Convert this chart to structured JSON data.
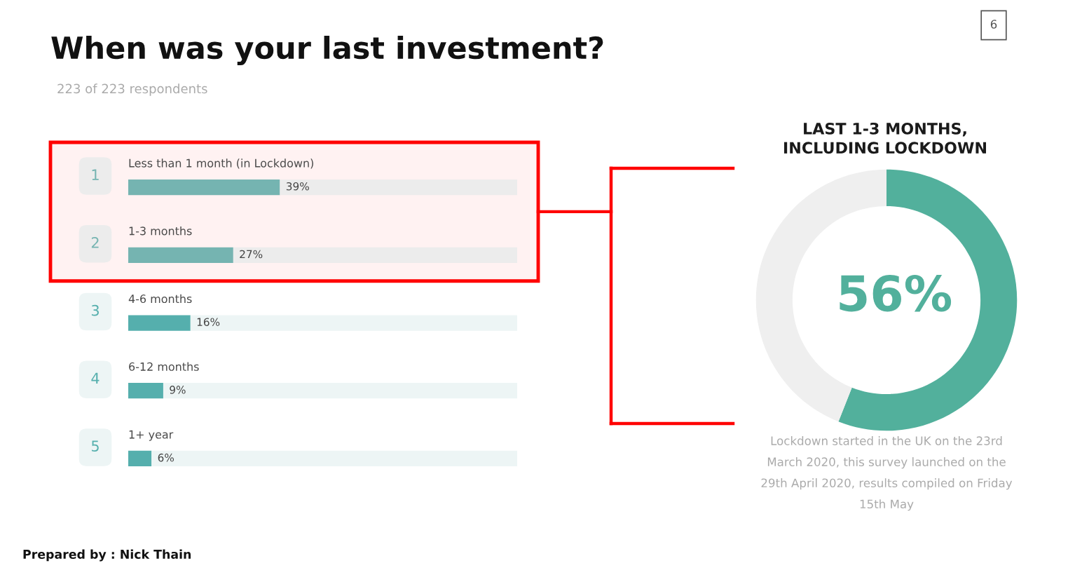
{
  "chart_data": [
    {
      "type": "bar",
      "orientation": "horizontal",
      "stacked": true,
      "title": "When was your last investment?",
      "subtitle": "223 of 223 respondents",
      "categories": [
        "Less than 1 month (in Lockdown)",
        "1-3 months",
        "4-6 months",
        "6-12 months",
        "1+ year"
      ],
      "series": [
        {
          "colors": [
            "#75b4b1",
            "#75b4b1",
            "#55afad",
            "#55afad",
            "#55afad"
          ],
          "values": [
            39,
            27,
            16,
            9,
            6
          ],
          "value_labels": [
            "39%",
            "27%",
            "16%",
            "9%",
            "6%"
          ]
        },
        {
          "colors": [
            "#ececec",
            "#ececec",
            "#edf5f5",
            "#edf5f5",
            "#edf5f5"
          ],
          "values": [
            61,
            73,
            84,
            91,
            94
          ]
        }
      ],
      "xlim": [
        0,
        100
      ],
      "tick_labels": "y",
      "bands": [
        {
          "axis": "y",
          "from": "Less than 1 month (in Lockdown)",
          "to": "1-3 months",
          "color": "#ff0000"
        }
      ],
      "annotations": [
        "1",
        "2",
        "3",
        "4",
        "5",
        "Prepared by : Nick Thain",
        "6"
      ]
    },
    {
      "type": "donut",
      "title": "LAST 1-3 MONTHS,\nINCLUDING LOCKDOWN",
      "categories": [
        null,
        null
      ],
      "values": [
        56,
        44
      ],
      "colors": [
        "#52b09c",
        "#efefef"
      ],
      "value_labels": [
        "56%",
        null
      ],
      "annotations": [
        "Lockdown started in the UK on the 23rd March 2020, this survey launched on the 29th April 2020, results compiled on Friday 15th May"
      ]
    }
  ]
}
